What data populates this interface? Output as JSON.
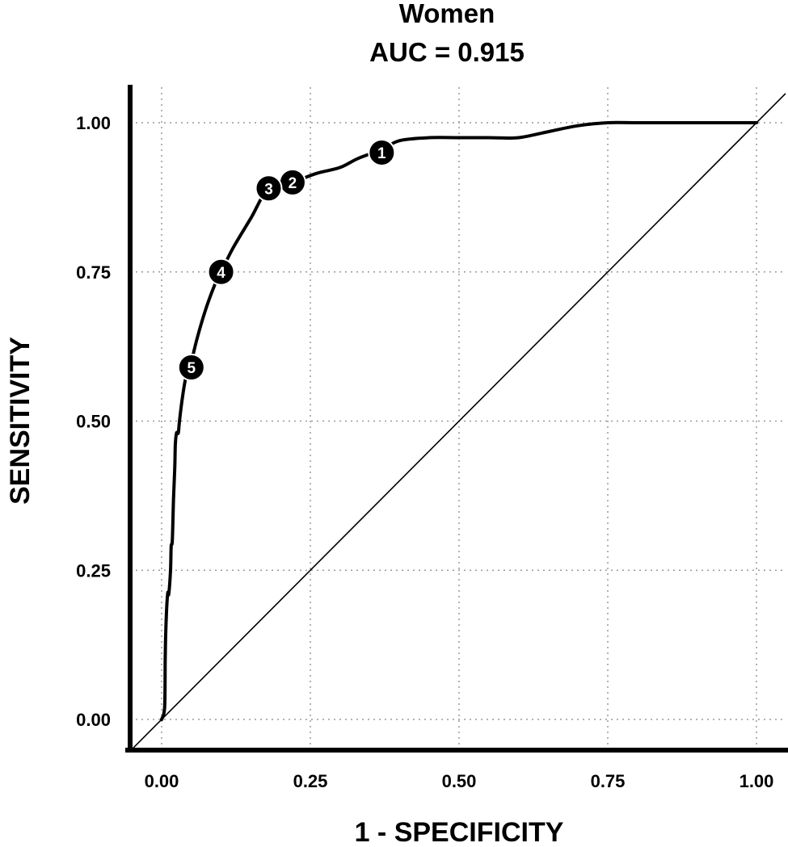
{
  "chart_data": {
    "type": "line",
    "title": "Women",
    "subtitle": "AUC = 0.915",
    "xlabel": "1 - SPECIFICITY",
    "ylabel": "SENSITIVITY",
    "xlim": [
      0,
      1
    ],
    "ylim": [
      0,
      1
    ],
    "grid": true,
    "x_ticks": [
      0.0,
      0.25,
      0.5,
      0.75,
      1.0
    ],
    "x_tick_labels": [
      "0.00",
      "0.25",
      "0.50",
      "0.75",
      "1.00"
    ],
    "y_ticks": [
      0.0,
      0.25,
      0.5,
      0.75,
      1.0
    ],
    "y_tick_labels": [
      "0.00",
      "0.25",
      "0.50",
      "0.75",
      "1.00"
    ],
    "colors": {
      "curve": "#000000",
      "diagonal": "#000000",
      "grid": "#9a9a9a",
      "marker_fill": "#000000",
      "marker_text": "#ffffff"
    },
    "series": [
      {
        "x": [
          0.0,
          0.005,
          0.006,
          0.007,
          0.01,
          0.012,
          0.015,
          0.016,
          0.018,
          0.02,
          0.022,
          0.023,
          0.025,
          0.028,
          0.03,
          0.035,
          0.04,
          0.045,
          0.05,
          0.06,
          0.075,
          0.09,
          0.1,
          0.12,
          0.15,
          0.18,
          0.22,
          0.26,
          0.3,
          0.33,
          0.37,
          0.4,
          0.45,
          0.5,
          0.55,
          0.6,
          0.65,
          0.7,
          0.75,
          0.8,
          0.85,
          0.9,
          0.95,
          1.0
        ],
        "y": [
          0.0,
          0.02,
          0.1,
          0.15,
          0.21,
          0.21,
          0.25,
          0.29,
          0.3,
          0.37,
          0.42,
          0.46,
          0.48,
          0.48,
          0.5,
          0.54,
          0.57,
          0.59,
          0.6,
          0.64,
          0.69,
          0.73,
          0.75,
          0.79,
          0.84,
          0.89,
          0.9,
          0.915,
          0.925,
          0.94,
          0.955,
          0.97,
          0.975,
          0.975,
          0.975,
          0.975,
          0.985,
          0.995,
          1.0,
          1.0,
          1.0,
          1.0,
          1.0,
          1.0
        ]
      },
      {
        "x": [
          0.0,
          1.0
        ],
        "y": [
          0.0,
          1.0
        ]
      }
    ],
    "annotations": [
      {
        "label": "1",
        "x": 0.37,
        "y": 0.95
      },
      {
        "label": "2",
        "x": 0.22,
        "y": 0.9
      },
      {
        "label": "3",
        "x": 0.18,
        "y": 0.89
      },
      {
        "label": "4",
        "x": 0.1,
        "y": 0.75
      },
      {
        "label": "5",
        "x": 0.05,
        "y": 0.59
      }
    ]
  }
}
